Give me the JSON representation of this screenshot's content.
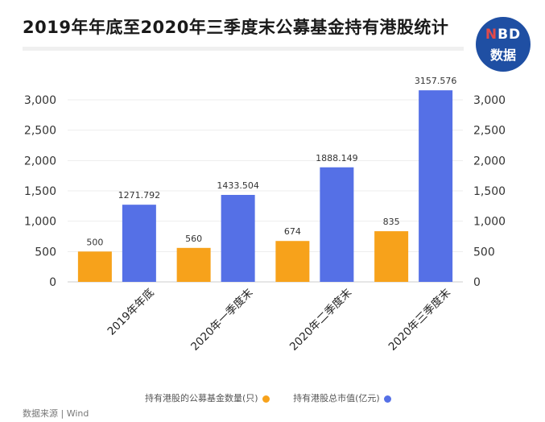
{
  "header": {
    "title": "2019年年底至2020年三季度末公募基金持有港股统计",
    "logo_line1_a": "N",
    "logo_line1_b": "BD",
    "logo_line2": "数据"
  },
  "chart_data": {
    "type": "bar",
    "title": "2019年年底至2020年三季度末公募基金持有港股统计",
    "categories": [
      "2019年年底",
      "2020年一季度末",
      "2020年二季度末",
      "2020年三季度末"
    ],
    "series": [
      {
        "name": "持有港股的公募基金数量(只)",
        "values": [
          500,
          560,
          674,
          835
        ],
        "labels": [
          "500",
          "560",
          "674",
          "835"
        ],
        "color": "#f7a21b"
      },
      {
        "name": "持有港股总市值(亿元)",
        "values": [
          1271.792,
          1433.504,
          1888.149,
          3157.576
        ],
        "labels": [
          "1271.792",
          "1433.504",
          "1888.149",
          "3157.576"
        ],
        "color": "#5570e6"
      }
    ],
    "ylim": [
      0,
      3000
    ],
    "yticks": [
      0,
      500,
      1000,
      1500,
      2000,
      2500,
      3000
    ],
    "ytick_labels": [
      "0",
      "500",
      "1,000",
      "1,500",
      "2,000",
      "2,500",
      "3,000"
    ],
    "xlabel": "",
    "ylabel": "",
    "legend": "bottom-right"
  },
  "source": "数据来源 | Wind"
}
